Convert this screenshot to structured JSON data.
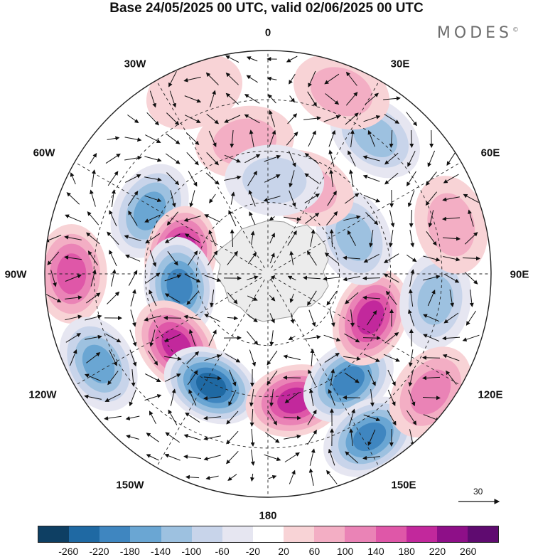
{
  "title": "Base 24/05/2025 00 UTC, valid 02/06/2025 00 UTC",
  "brand": "MODES",
  "brand_mark": "©",
  "vector_ref": "30",
  "longitudes": {
    "top": "0",
    "lon30e": "30E",
    "lon60e": "60E",
    "lon90e": "90E",
    "lon120e": "120E",
    "lon150e": "150E",
    "bottom": "180",
    "lon150w": "150W",
    "lon120w": "120W",
    "lon90w": "90W",
    "lon60w": "60W",
    "lon30w": "30W"
  },
  "colorbar": {
    "colors": [
      "#0e3f63",
      "#1f69a3",
      "#3f86c0",
      "#6aa6d3",
      "#9dc1e0",
      "#c8d4ea",
      "#e6e6f1",
      "#ffffff",
      "#f8d3d6",
      "#f3aec4",
      "#ea83b6",
      "#df57a8",
      "#c2289c",
      "#8e0f88",
      "#5f0b70"
    ],
    "ticks": [
      "-260",
      "-220",
      "-180",
      "-140",
      "-100",
      "-60",
      "-20",
      "20",
      "60",
      "100",
      "140",
      "180",
      "220",
      "260"
    ]
  },
  "anomalies": [
    {
      "lon": -62,
      "r": 0.6,
      "v": -140
    },
    {
      "lon": -78,
      "r": 0.4,
      "v": 220
    },
    {
      "lon": -98,
      "r": 0.4,
      "v": -200
    },
    {
      "lon": -90,
      "r": 0.88,
      "v": 140
    },
    {
      "lon": -118,
      "r": 0.86,
      "v": -140
    },
    {
      "lon": -128,
      "r": 0.52,
      "v": 200
    },
    {
      "lon": -153,
      "r": 0.56,
      "v": -220
    },
    {
      "lon": 168,
      "r": 0.58,
      "v": 200
    },
    {
      "lon": 143,
      "r": 0.6,
      "v": -200
    },
    {
      "lon": 148,
      "r": 0.86,
      "v": -180
    },
    {
      "lon": 113,
      "r": 0.5,
      "v": 200
    },
    {
      "lon": 99,
      "r": 0.76,
      "v": -100
    },
    {
      "lon": 126,
      "r": 0.9,
      "v": 100
    },
    {
      "lon": 67,
      "r": 0.42,
      "v": -120
    },
    {
      "lon": 75,
      "r": 0.85,
      "v": 60
    },
    {
      "lon": 38,
      "r": 0.78,
      "v": -120
    },
    {
      "lon": 22,
      "r": 0.88,
      "v": 80
    },
    {
      "lon": 24,
      "r": 0.42,
      "v": 80
    },
    {
      "lon": -10,
      "r": 0.6,
      "v": 60
    },
    {
      "lon": 4,
      "r": 0.42,
      "v": -60
    },
    {
      "lon": -22,
      "r": 0.88,
      "v": 40
    }
  ]
}
